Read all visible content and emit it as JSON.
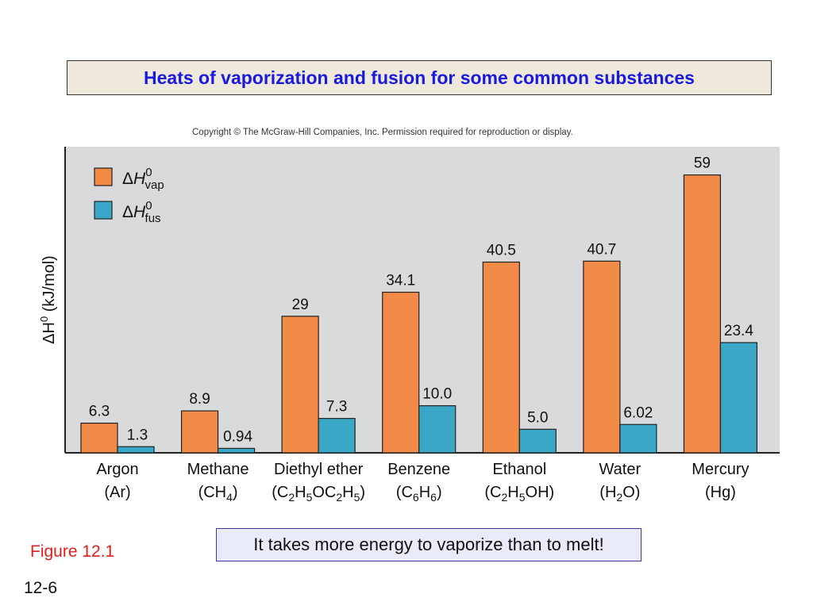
{
  "slide": {
    "title": "Heats of vaporization and fusion for some common substances",
    "copyright": "Copyright © The McGraw-Hill Companies, Inc. Permission required for reproduction or display.",
    "note": "It takes more energy to vaporize than to melt!",
    "figure_label": "Figure 12.1",
    "slide_number": "12-6"
  },
  "colors": {
    "vap": "#f28a48",
    "fus": "#3aa7c6",
    "plot_bg": "#d9dadb",
    "title_text": "#1a1adb",
    "figure_label": "#e21b1b"
  },
  "chart_data": {
    "type": "bar",
    "ylabel": "ΔH0 (kJ/mol)",
    "ylim": [
      0,
      65
    ],
    "grid": false,
    "legend_position": "top-left",
    "categories": [
      {
        "name": "Argon",
        "formula": [
          {
            "t": "(Ar)"
          }
        ]
      },
      {
        "name": "Methane",
        "formula": [
          {
            "t": "(CH"
          },
          {
            "t": "4",
            "sub": true
          },
          {
            "t": ")"
          }
        ]
      },
      {
        "name": "Diethyl ether",
        "formula": [
          {
            "t": "(C"
          },
          {
            "t": "2",
            "sub": true
          },
          {
            "t": "H"
          },
          {
            "t": "5",
            "sub": true
          },
          {
            "t": "OC"
          },
          {
            "t": "2",
            "sub": true
          },
          {
            "t": "H"
          },
          {
            "t": "5",
            "sub": true
          },
          {
            "t": ")"
          }
        ]
      },
      {
        "name": "Benzene",
        "formula": [
          {
            "t": "(C"
          },
          {
            "t": "6",
            "sub": true
          },
          {
            "t": "H"
          },
          {
            "t": "6",
            "sub": true
          },
          {
            "t": ")"
          }
        ]
      },
      {
        "name": "Ethanol",
        "formula": [
          {
            "t": "(C"
          },
          {
            "t": "2",
            "sub": true
          },
          {
            "t": "H"
          },
          {
            "t": "5",
            "sub": true
          },
          {
            "t": "OH)"
          }
        ]
      },
      {
        "name": "Water",
        "formula": [
          {
            "t": "(H"
          },
          {
            "t": "2",
            "sub": true
          },
          {
            "t": "O)"
          }
        ]
      },
      {
        "name": "Mercury",
        "formula": [
          {
            "t": "(Hg)"
          }
        ]
      }
    ],
    "series": [
      {
        "name": "ΔH0vap",
        "legend_main": "ΔH",
        "legend_sup": "0",
        "legend_sub": "vap",
        "color_key": "vap",
        "values": [
          6.3,
          8.9,
          29,
          34.1,
          40.5,
          40.7,
          59
        ],
        "labels": [
          "6.3",
          "8.9",
          "29",
          "34.1",
          "40.5",
          "40.7",
          "59"
        ]
      },
      {
        "name": "ΔH0fus",
        "legend_main": "ΔH",
        "legend_sup": "0",
        "legend_sub": "fus",
        "color_key": "fus",
        "values": [
          1.3,
          0.94,
          7.3,
          10.0,
          5.0,
          6.02,
          23.4
        ],
        "labels": [
          "1.3",
          "0.94",
          "7.3",
          "10.0",
          "5.0",
          "6.02",
          "23.4"
        ]
      }
    ]
  }
}
